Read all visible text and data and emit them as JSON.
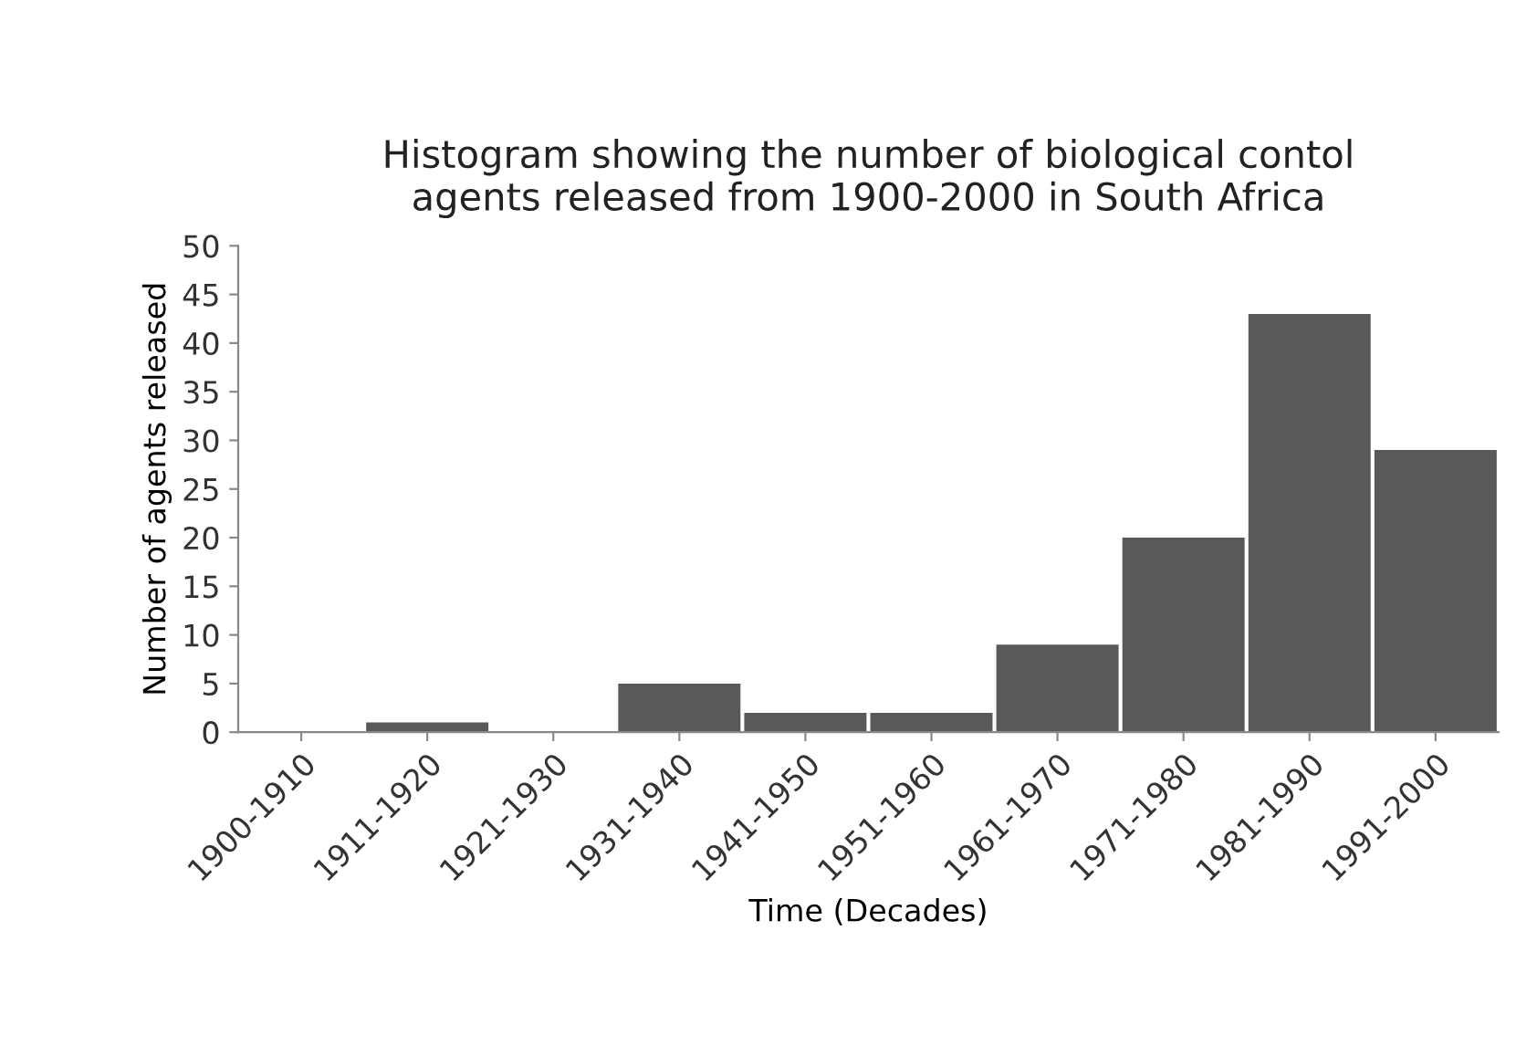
{
  "chart_data": {
    "type": "bar",
    "title": "Histogram showing the number of biological contol\nagents released from 1900-2000 in South Africa",
    "xlabel": "Time (Decades)",
    "ylabel": "Number of agents released",
    "categories": [
      "1900-1910",
      "1911-1920",
      "1921-1930",
      "1931-1940",
      "1941-1950",
      "1951-1960",
      "1961-1970",
      "1971-1980",
      "1981-1990",
      "1991-2000"
    ],
    "values": [
      0,
      1,
      0,
      5,
      2,
      2,
      9,
      20,
      43,
      29
    ],
    "color": "#595959",
    "ylim": [
      0,
      50
    ],
    "yticks": [
      0,
      5,
      10,
      15,
      20,
      25,
      30,
      35,
      40,
      45,
      50
    ],
    "grid": false,
    "legend": false
  }
}
